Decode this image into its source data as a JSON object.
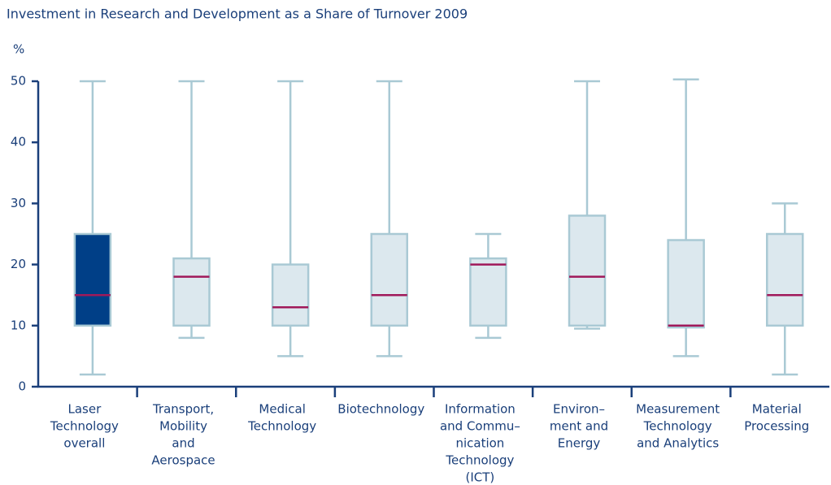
{
  "chart_data": {
    "type": "box",
    "title": "Investment in Research and Development as a Share of Turnover 2009",
    "y_label": "%",
    "categories": [
      [
        "Laser",
        "Technology",
        "overall"
      ],
      [
        "Transport,",
        "Mobility",
        "and",
        "Aerospace"
      ],
      [
        "Medical",
        "Technology"
      ],
      [
        "Biotechnology"
      ],
      [
        "Information",
        "and Commu–",
        "nication",
        "Technology",
        "(ICT)"
      ],
      [
        "Environ–",
        "ment and",
        "Energy"
      ],
      [
        "Measurement",
        "Technology",
        "and Analytics"
      ],
      [
        "Material",
        "Processing"
      ]
    ],
    "boxes": [
      {
        "min": 2,
        "q1": 10,
        "median": 15,
        "q3": 25,
        "max": 50
      },
      {
        "min": 8,
        "q1": 10,
        "median": 18,
        "q3": 21,
        "max": 50
      },
      {
        "min": 5,
        "q1": 10,
        "median": 13,
        "q3": 20,
        "max": 50
      },
      {
        "min": 5,
        "q1": 10,
        "median": 15,
        "q3": 25,
        "max": 50
      },
      {
        "min": 8,
        "q1": 10,
        "median": 20,
        "q3": 21,
        "max": 25
      },
      {
        "min": 9.5,
        "q1": 10,
        "median": 18,
        "q3": 28,
        "max": 50
      },
      {
        "min": 5,
        "q1": 9.7,
        "median": 10,
        "q3": 24,
        "max": 50.3
      },
      {
        "min": 2,
        "q1": 10,
        "median": 15,
        "q3": 25,
        "max": 30
      }
    ],
    "colors": [
      "#003f87",
      "#dce8ee",
      "#dce8ee",
      "#dce8ee",
      "#dce8ee",
      "#dce8ee",
      "#dce8ee",
      "#dce8ee"
    ],
    "whisker_color": "#a9c9d4",
    "median_color": "#a0195a",
    "ylim": [
      0,
      50
    ],
    "yticks": [
      0,
      10,
      20,
      30,
      40,
      50
    ]
  }
}
